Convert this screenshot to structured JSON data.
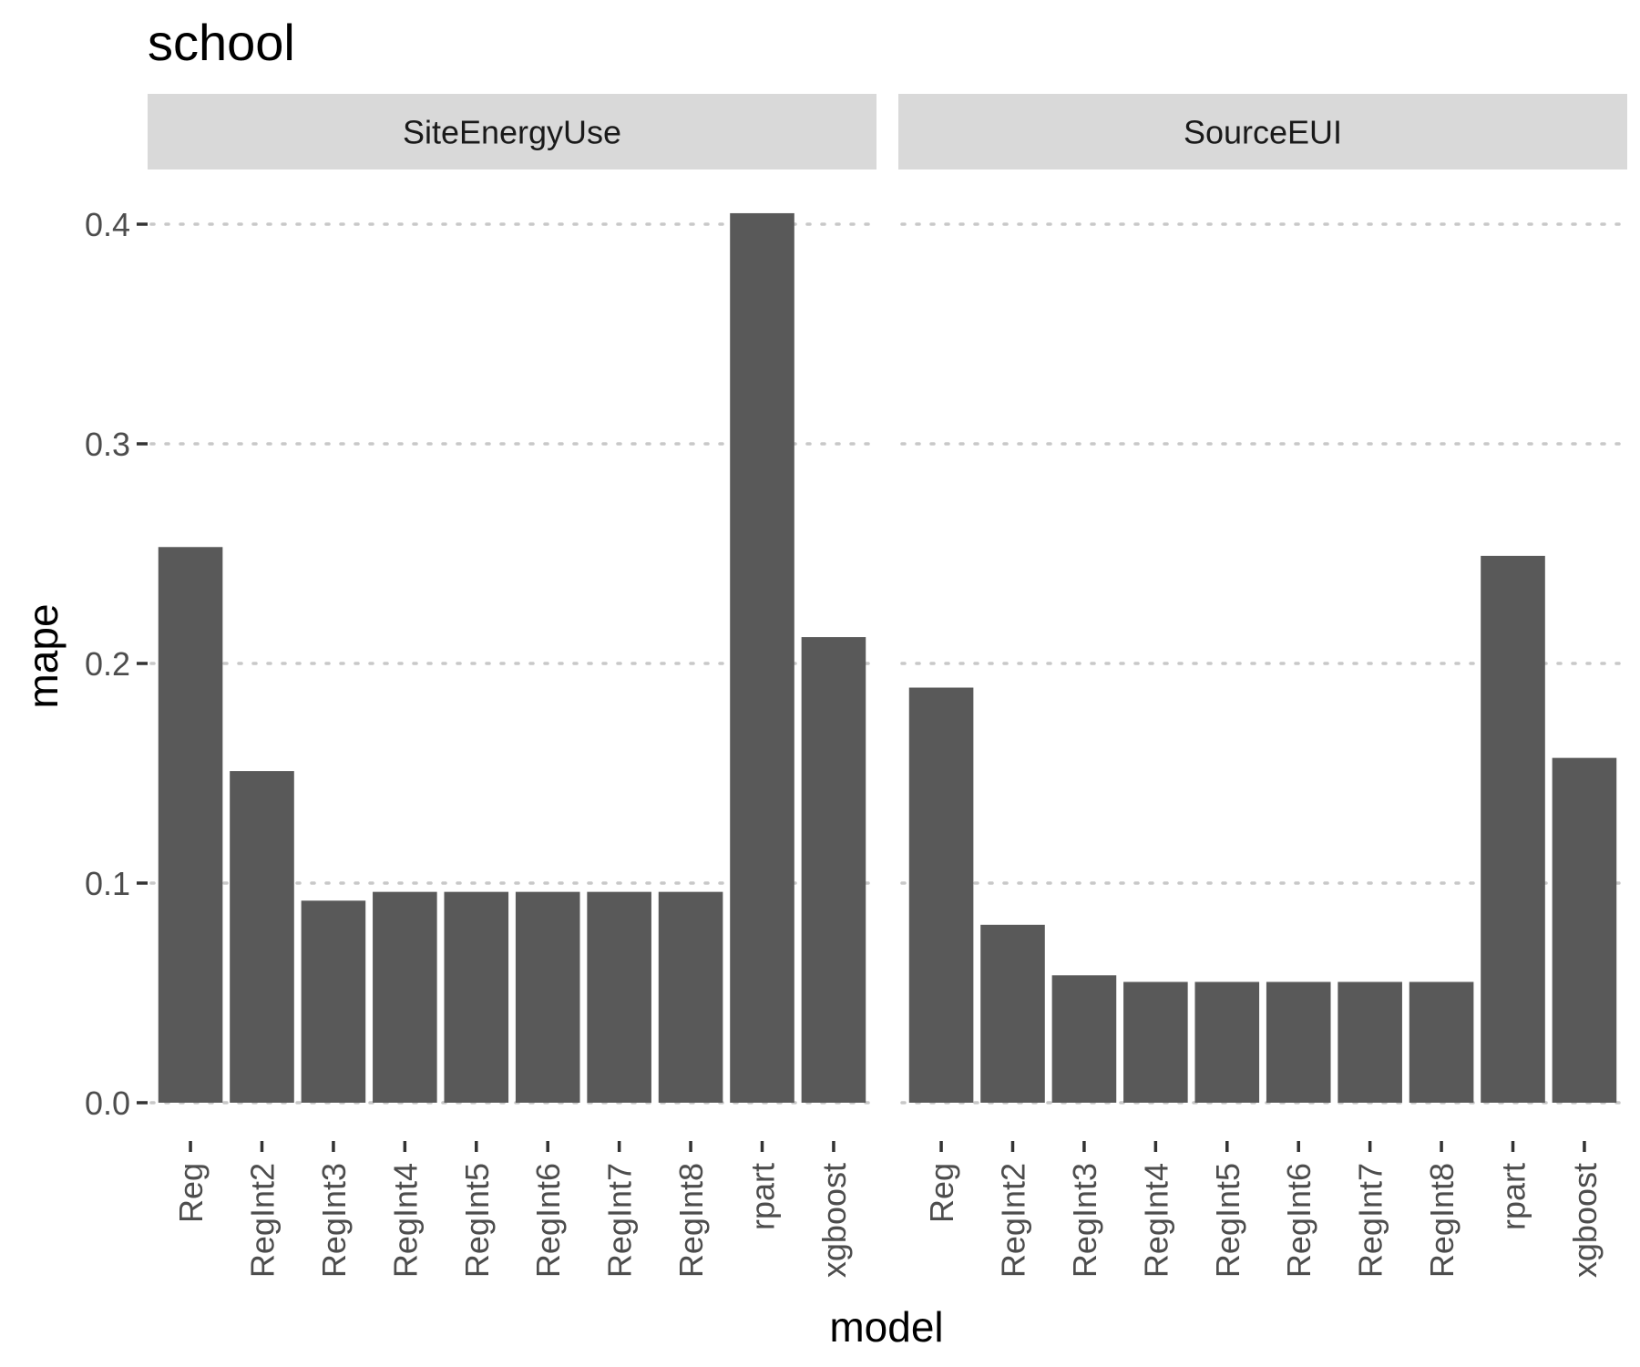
{
  "chart_data": {
    "type": "bar",
    "title": "school",
    "xlabel": "model",
    "ylabel": "mape",
    "ylim": [
      0,
      0.42
    ],
    "yticks": [
      "0.0",
      "0.1",
      "0.2",
      "0.3",
      "0.4"
    ],
    "categories": [
      "Reg",
      "RegInt2",
      "RegInt3",
      "RegInt4",
      "RegInt5",
      "RegInt6",
      "RegInt7",
      "RegInt8",
      "rpart",
      "xgboost"
    ],
    "grid": "horizontal dotted",
    "facets": [
      {
        "name": "SiteEnergyUse",
        "values": [
          0.253,
          0.151,
          0.092,
          0.096,
          0.096,
          0.096,
          0.096,
          0.096,
          0.405,
          0.212
        ]
      },
      {
        "name": "SourceEUI",
        "values": [
          0.189,
          0.081,
          0.058,
          0.055,
          0.055,
          0.055,
          0.055,
          0.055,
          0.249,
          0.157
        ]
      }
    ],
    "colors": {
      "bar": "#595959",
      "strip": "#d9d9d9",
      "grid": "#c8c8c8"
    }
  }
}
